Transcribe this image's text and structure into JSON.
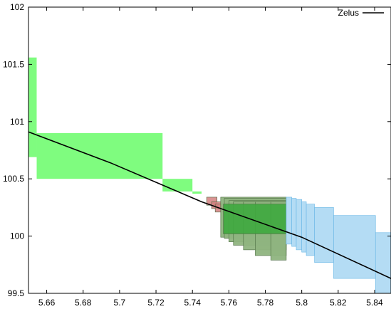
{
  "chart_data": {
    "type": "line",
    "title": "",
    "xlabel": "",
    "ylabel": "",
    "xlim": [
      5.65,
      5.849
    ],
    "ylim": [
      99.5,
      102
    ],
    "x_ticks": [
      "5.66",
      "5.68",
      "5.7",
      "5.72",
      "5.74",
      "5.76",
      "5.78",
      "5.8",
      "5.82",
      "5.84"
    ],
    "x_tick_values": [
      5.66,
      5.68,
      5.7,
      5.72,
      5.74,
      5.76,
      5.78,
      5.8,
      5.82,
      5.84
    ],
    "y_ticks": [
      "99.5",
      "100",
      "100.5",
      "101",
      "101.5",
      "102"
    ],
    "y_tick_values": [
      99.5,
      100,
      100.5,
      101,
      101.5,
      102
    ],
    "legend": {
      "position": "top-right",
      "entries": [
        "Zelus"
      ]
    },
    "series": [
      {
        "name": "Zelus",
        "color": "#000000",
        "x": [
          5.65,
          5.695,
          5.745,
          5.8,
          5.849
        ],
        "y": [
          100.91,
          100.64,
          100.3,
          99.99,
          99.63
        ]
      }
    ],
    "boxes": [
      {
        "group": "green",
        "color": "#7ffc7f",
        "opacity": 1,
        "x": [
          5.65,
          5.6545
        ],
        "y": [
          100.69,
          101.56
        ]
      },
      {
        "group": "green",
        "color": "#7ffc7f",
        "opacity": 1,
        "x": [
          5.6545,
          5.7236
        ],
        "y": [
          100.5,
          100.9
        ]
      },
      {
        "group": "green",
        "color": "#7ffc7f",
        "opacity": 1,
        "x": [
          5.7236,
          5.74
        ],
        "y": [
          100.39,
          100.5
        ]
      },
      {
        "group": "green",
        "color": "#7ffc7f",
        "opacity": 1,
        "x": [
          5.74,
          5.745
        ],
        "y": [
          100.37,
          100.39
        ]
      },
      {
        "group": "red",
        "color": "#d38080",
        "opacity": 0.85,
        "x": [
          5.7478,
          5.7535
        ],
        "y": [
          100.27,
          100.34
        ]
      },
      {
        "group": "red",
        "color": "#d38080",
        "opacity": 0.85,
        "x": [
          5.7505,
          5.7555
        ],
        "y": [
          100.24,
          100.3
        ]
      },
      {
        "group": "red",
        "color": "#d38080",
        "opacity": 0.85,
        "x": [
          5.7525,
          5.7575
        ],
        "y": [
          100.21,
          100.28
        ]
      },
      {
        "group": "olive",
        "color": "#8fb47f",
        "opacity": 0.95,
        "x": [
          5.7555,
          5.7915
        ],
        "y": [
          99.99,
          100.34
        ]
      },
      {
        "group": "olive",
        "color": "#8fb47f",
        "opacity": 0.95,
        "x": [
          5.7575,
          5.7915
        ],
        "y": [
          99.98,
          100.33
        ]
      },
      {
        "group": "olive",
        "color": "#8fb47f",
        "opacity": 0.95,
        "x": [
          5.76,
          5.7915
        ],
        "y": [
          99.95,
          100.31
        ]
      },
      {
        "group": "olive",
        "color": "#8fb47f",
        "opacity": 0.95,
        "x": [
          5.7625,
          5.7915
        ],
        "y": [
          99.92,
          100.3
        ]
      },
      {
        "group": "olive",
        "color": "#8fb47f",
        "opacity": 0.95,
        "x": [
          5.768,
          5.7915
        ],
        "y": [
          99.88,
          100.3
        ]
      },
      {
        "group": "olive",
        "color": "#8fb47f",
        "opacity": 0.95,
        "x": [
          5.7745,
          5.7915
        ],
        "y": [
          99.83,
          100.3
        ]
      },
      {
        "group": "olive",
        "color": "#8fb47f",
        "opacity": 0.95,
        "x": [
          5.783,
          5.7915
        ],
        "y": [
          99.79,
          100.3
        ]
      },
      {
        "group": "darkgreen",
        "color": "#3ea83e",
        "opacity": 0.9,
        "x": [
          5.757,
          5.7915
        ],
        "y": [
          100.02,
          100.28
        ]
      },
      {
        "group": "blue",
        "color": "#b4dcf4",
        "opacity": 1,
        "x": [
          5.7915,
          5.7945
        ],
        "y": [
          99.93,
          100.34
        ]
      },
      {
        "group": "blue",
        "color": "#b4dcf4",
        "opacity": 1,
        "x": [
          5.7945,
          5.797
        ],
        "y": [
          99.91,
          100.33
        ]
      },
      {
        "group": "blue",
        "color": "#b4dcf4",
        "opacity": 1,
        "x": [
          5.797,
          5.8
        ],
        "y": [
          99.88,
          100.32
        ]
      },
      {
        "group": "blue",
        "color": "#b4dcf4",
        "opacity": 1,
        "x": [
          5.8,
          5.8025
        ],
        "y": [
          99.86,
          100.3
        ]
      },
      {
        "group": "blue",
        "color": "#b4dcf4",
        "opacity": 1,
        "x": [
          5.8025,
          5.807
        ],
        "y": [
          99.83,
          100.28
        ]
      },
      {
        "group": "blue",
        "color": "#b4dcf4",
        "opacity": 1,
        "x": [
          5.807,
          5.8175
        ],
        "y": [
          99.77,
          100.25
        ]
      },
      {
        "group": "blue",
        "color": "#b4dcf4",
        "opacity": 1,
        "x": [
          5.8175,
          5.8405
        ],
        "y": [
          99.63,
          100.18
        ]
      },
      {
        "group": "blue",
        "color": "#b4dcf4",
        "opacity": 1,
        "x": [
          5.8405,
          5.849
        ],
        "y": [
          99.5,
          100.03
        ]
      }
    ]
  }
}
